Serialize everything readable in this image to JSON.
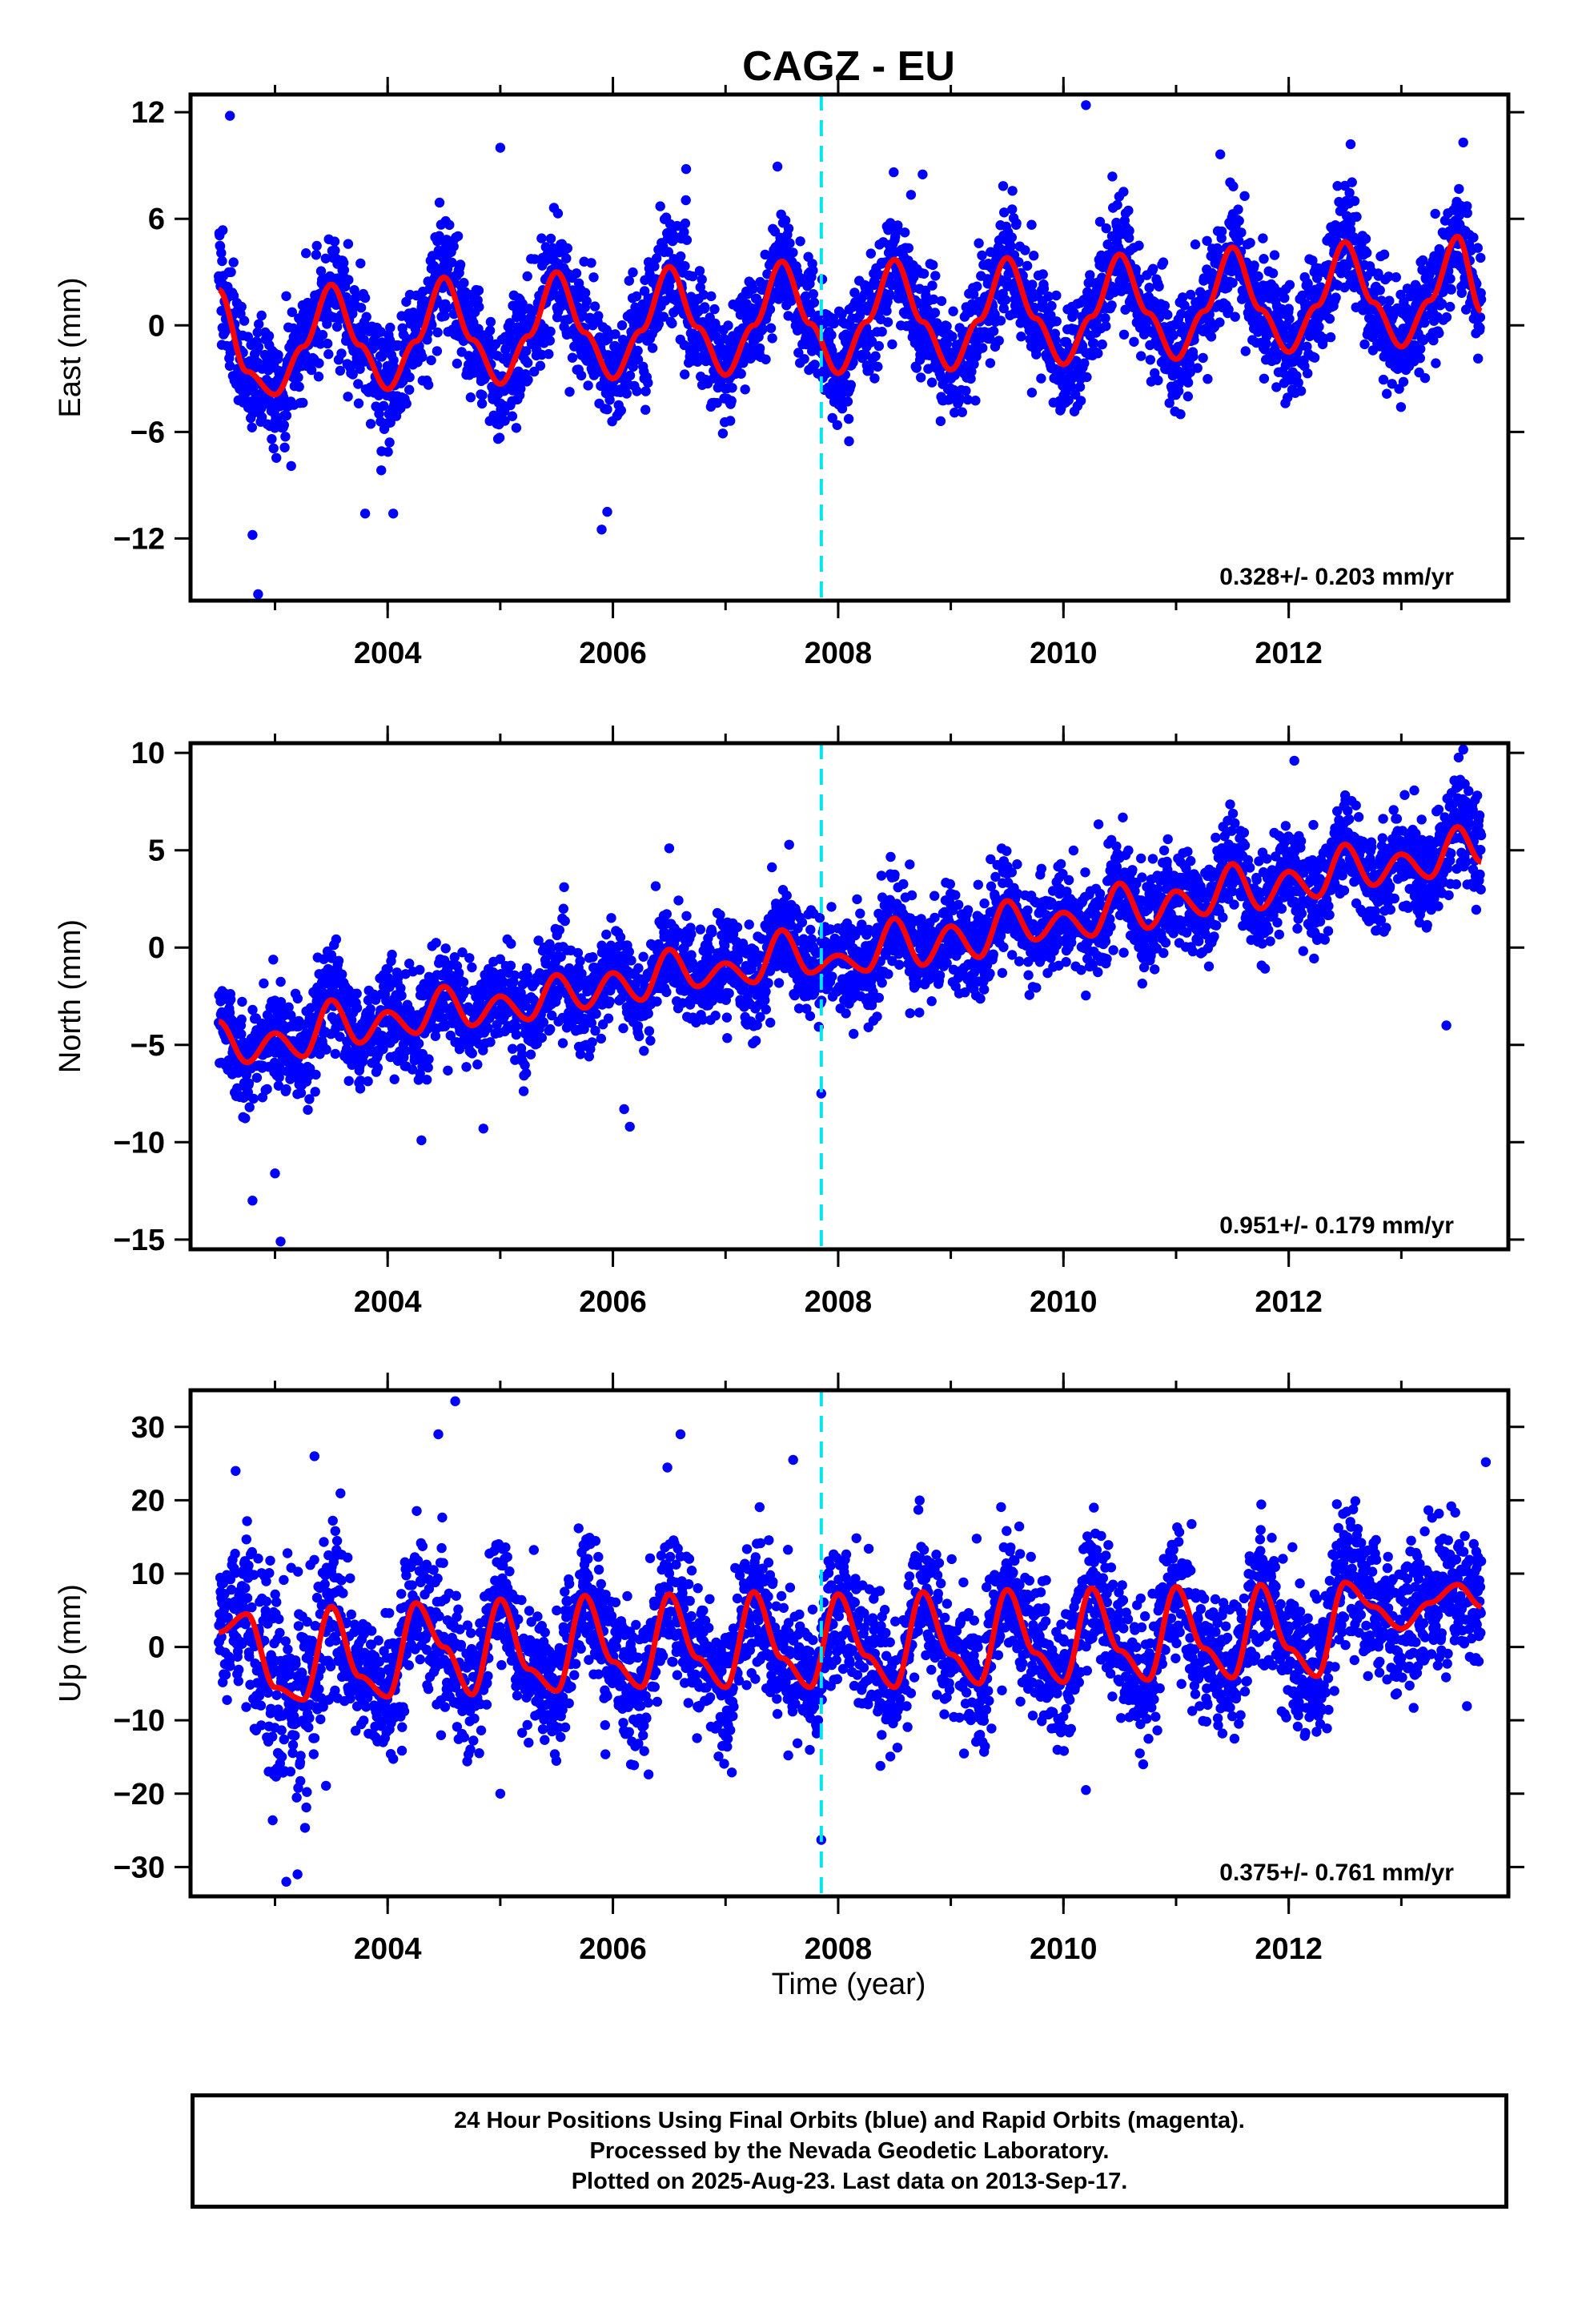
{
  "figure": {
    "title": "CAGZ - EU",
    "xlabel": "Time (year)"
  },
  "footer": {
    "line1": "24 Hour Positions Using Final Orbits (blue) and Rapid Orbits (magenta).",
    "line2": "Processed by the Nevada Geodetic Laboratory.",
    "line3": "Plotted on 2025-Aug-23. Last data on 2013-Sep-17."
  },
  "colors": {
    "points": "#0000ff",
    "model": "#ff0000",
    "event_line": "#00e5ee",
    "frame": "#000000"
  },
  "chart_data": [
    {
      "type": "scatter",
      "panel": "east",
      "ylabel": "East (mm)",
      "xlim": [
        2002.25,
        2013.95
      ],
      "ylim": [
        -15.5,
        13
      ],
      "x_ticks": [
        2004,
        2006,
        2008,
        2010,
        2012
      ],
      "y_ticks": [
        -12,
        -6,
        0,
        6,
        12
      ],
      "rate_text": "0.328+/- 0.203 mm/yr",
      "event_x": 2007.85,
      "data_start": 2002.5,
      "data_end": 2013.71,
      "model": {
        "name": "",
        "x": [
          2002.5,
          2002.75,
          2003.0,
          2003.25,
          2003.5,
          2003.75,
          2004.0,
          2004.25,
          2004.5,
          2004.75,
          2005.0,
          2005.25,
          2005.5,
          2005.75,
          2006.0,
          2006.25,
          2006.5,
          2006.75,
          2007.0,
          2007.25,
          2007.5,
          2007.75,
          2008.0,
          2008.25,
          2008.5,
          2008.75,
          2009.0,
          2009.25,
          2009.5,
          2009.75,
          2010.0,
          2010.25,
          2010.5,
          2010.75,
          2011.0,
          2011.25,
          2011.5,
          2011.75,
          2012.0,
          2012.25,
          2012.5,
          2012.75,
          2013.0,
          2013.25,
          2013.5,
          2013.71
        ],
        "y": [
          2.0,
          -2.6,
          -3.9,
          -1.2,
          2.3,
          -1.1,
          -3.6,
          -0.9,
          2.7,
          -0.8,
          -3.3,
          -0.6,
          3.0,
          -0.4,
          -3.0,
          -0.3,
          3.3,
          -0.1,
          -2.8,
          0.0,
          3.6,
          0.1,
          -2.7,
          0.2,
          3.7,
          0.2,
          -2.5,
          0.3,
          3.8,
          0.4,
          -2.2,
          0.5,
          4.0,
          0.7,
          -1.9,
          0.8,
          4.4,
          0.9,
          -1.5,
          1.1,
          4.7,
          1.3,
          -1.2,
          1.4,
          5.0,
          0.8
        ]
      },
      "scatter": {
        "sigma": 1.55,
        "outliers": [
          [
            2002.6,
            11.8
          ],
          [
            2002.85,
            -15.2
          ],
          [
            2002.8,
            -11.8
          ],
          [
            2010.2,
            12.4
          ],
          [
            2005.0,
            10.0
          ],
          [
            2005.9,
            -11.5
          ],
          [
            2005.95,
            -10.5
          ],
          [
            2003.8,
            -10.6
          ],
          [
            2012.55,
            10.2
          ],
          [
            2013.55,
            10.3
          ],
          [
            2004.05,
            -10.6
          ],
          [
            2008.75,
            8.5
          ],
          [
            2006.65,
            8.8
          ]
        ]
      }
    },
    {
      "type": "scatter",
      "panel": "north",
      "ylabel": "North (mm)",
      "xlim": [
        2002.25,
        2013.95
      ],
      "ylim": [
        -15.5,
        10.5
      ],
      "x_ticks": [
        2004,
        2006,
        2008,
        2010,
        2012
      ],
      "y_ticks": [
        -15,
        -10,
        -5,
        0,
        5,
        10
      ],
      "rate_text": "0.951+/- 0.179 mm/yr",
      "event_x": 2007.85,
      "data_start": 2002.5,
      "data_end": 2013.71,
      "model": {
        "name": "",
        "x": [
          2002.5,
          2002.75,
          2003.0,
          2003.25,
          2003.5,
          2003.75,
          2004.0,
          2004.25,
          2004.5,
          2004.75,
          2005.0,
          2005.25,
          2005.5,
          2005.75,
          2006.0,
          2006.25,
          2006.5,
          2006.75,
          2007.0,
          2007.25,
          2007.5,
          2007.75,
          2008.0,
          2008.25,
          2008.5,
          2008.75,
          2009.0,
          2009.25,
          2009.5,
          2009.75,
          2010.0,
          2010.25,
          2010.5,
          2010.75,
          2011.0,
          2011.25,
          2011.5,
          2011.75,
          2012.0,
          2012.25,
          2012.5,
          2012.75,
          2013.0,
          2013.25,
          2013.5,
          2013.71
        ],
        "y": [
          -3.8,
          -5.9,
          -4.4,
          -5.6,
          -2.7,
          -4.9,
          -3.3,
          -4.4,
          -2.0,
          -4.0,
          -2.5,
          -3.7,
          -1.4,
          -3.1,
          -1.3,
          -2.7,
          -0.1,
          -2.0,
          -0.8,
          -1.8,
          0.9,
          -1.3,
          -0.4,
          -1.2,
          1.5,
          -0.9,
          1.1,
          -0.5,
          2.4,
          0.4,
          1.8,
          0.6,
          3.3,
          1.0,
          2.9,
          1.7,
          4.3,
          2.0,
          3.9,
          2.6,
          5.3,
          3.2,
          4.8,
          3.6,
          6.2,
          4.4
        ]
      },
      "scatter": {
        "sigma": 1.25,
        "outliers": [
          [
            2002.8,
            -13.0
          ],
          [
            2003.05,
            -15.1
          ],
          [
            2003.0,
            -11.6
          ],
          [
            2006.1,
            -8.3
          ],
          [
            2006.15,
            -9.2
          ],
          [
            2007.85,
            -7.5
          ],
          [
            2004.3,
            -9.9
          ],
          [
            2013.55,
            10.2
          ],
          [
            2013.4,
            -4.0
          ],
          [
            2012.05,
            9.6
          ],
          [
            2006.5,
            5.1
          ],
          [
            2004.85,
            -9.3
          ]
        ]
      }
    },
    {
      "type": "scatter",
      "panel": "up",
      "ylabel": "Up (mm)",
      "xlim": [
        2002.25,
        2013.95
      ],
      "ylim": [
        -34,
        35
      ],
      "x_ticks": [
        2004,
        2006,
        2008,
        2010,
        2012
      ],
      "y_ticks": [
        -30,
        -20,
        -10,
        0,
        10,
        20,
        30
      ],
      "rate_text": "0.375+/- 0.761 mm/yr",
      "event_x": 2007.85,
      "data_start": 2002.5,
      "data_end": 2013.71,
      "model": {
        "name": "",
        "x": [
          2002.5,
          2002.75,
          2003.0,
          2003.25,
          2003.5,
          2003.75,
          2004.0,
          2004.25,
          2004.5,
          2004.75,
          2005.0,
          2005.25,
          2005.5,
          2005.75,
          2006.0,
          2006.25,
          2006.5,
          2006.75,
          2007.0,
          2007.25,
          2007.5,
          2007.75,
          2008.0,
          2008.25,
          2008.5,
          2008.75,
          2009.0,
          2009.25,
          2009.5,
          2009.75,
          2010.0,
          2010.25,
          2010.5,
          2010.75,
          2011.0,
          2011.25,
          2011.5,
          2011.75,
          2012.0,
          2012.25,
          2012.5,
          2012.75,
          2013.0,
          2013.25,
          2013.5,
          2013.71
        ],
        "y": [
          2.0,
          4.5,
          -5.5,
          -7.2,
          5.5,
          -4.0,
          -6.8,
          6.0,
          0.0,
          -6.5,
          6.5,
          -3.0,
          -6.0,
          7.0,
          -2.0,
          -5.5,
          7.2,
          -1.5,
          -5.5,
          7.5,
          -1.5,
          -5.5,
          7.2,
          -1.2,
          -5.5,
          7.5,
          -1.0,
          -5.0,
          7.8,
          -0.8,
          -4.8,
          8.0,
          -0.5,
          -4.5,
          8.2,
          -0.2,
          -4.2,
          8.5,
          -0.2,
          -4.0,
          8.8,
          5.5,
          2.5,
          6.0,
          8.5,
          5.5
        ]
      },
      "scatter": {
        "sigma": 4.6,
        "outliers": [
          [
            2004.6,
            33.5
          ],
          [
            2002.65,
            24.0
          ],
          [
            2003.1,
            -32.0
          ],
          [
            2003.2,
            -31.0
          ],
          [
            2007.85,
            -26.3
          ],
          [
            2013.75,
            25.2
          ],
          [
            2006.6,
            29.0
          ],
          [
            2003.35,
            26.0
          ],
          [
            2004.45,
            29.0
          ],
          [
            2005.0,
            -20.0
          ],
          [
            2007.6,
            25.5
          ],
          [
            2010.2,
            -19.5
          ]
        ]
      }
    }
  ]
}
